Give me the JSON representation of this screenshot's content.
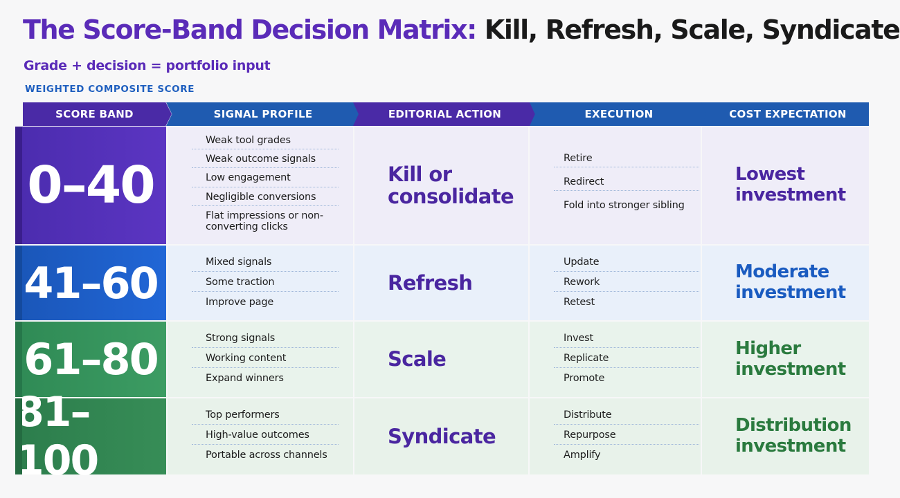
{
  "header": {
    "title_part1": "The Score-Band Decision Matrix:",
    "title_part2": " Kill, Refresh, Scale, Syndicate",
    "subtitle": "Grade + decision = portfolio input",
    "caption": "WEIGHTED COMPOSITE SCORE"
  },
  "columns": [
    "SCORE BAND",
    "SIGNAL PROFILE",
    "EDITORIAL ACTION",
    "EXECUTION",
    "COST EXPECTATION"
  ],
  "rows": [
    {
      "band": "0–40",
      "signals": [
        "Weak tool grades",
        "Weak outcome signals",
        "Low engagement",
        "Negligible conversions",
        "Flat impressions or non-converting clicks"
      ],
      "action_lines": [
        "Kill or",
        "consolidate"
      ],
      "execution": [
        "Retire",
        "Redirect",
        "Fold into stronger sibling"
      ],
      "cost_lines": [
        "Lowest",
        "investment"
      ]
    },
    {
      "band": "41–60",
      "signals": [
        "Mixed signals",
        "Some traction",
        "Improve page"
      ],
      "action_lines": [
        "Refresh"
      ],
      "execution": [
        "Update",
        "Rework",
        "Retest"
      ],
      "cost_lines": [
        "Moderate",
        "investment"
      ]
    },
    {
      "band": "61–80",
      "signals": [
        "Strong signals",
        "Working content",
        "Expand winners"
      ],
      "action_lines": [
        "Scale"
      ],
      "execution": [
        "Invest",
        "Replicate",
        "Promote"
      ],
      "cost_lines": [
        "Higher",
        "investment"
      ]
    },
    {
      "band": "81–100",
      "signals": [
        "Top performers",
        "High-value outcomes",
        "Portable across channels"
      ],
      "action_lines": [
        "Syndicate"
      ],
      "execution": [
        "Distribute",
        "Repurpose",
        "Amplify"
      ],
      "cost_lines": [
        "Distribution",
        "investment"
      ]
    }
  ],
  "colors": {
    "purple": "#5a2bb8",
    "blue": "#1f5bb0",
    "green": "#2a7a3e"
  }
}
